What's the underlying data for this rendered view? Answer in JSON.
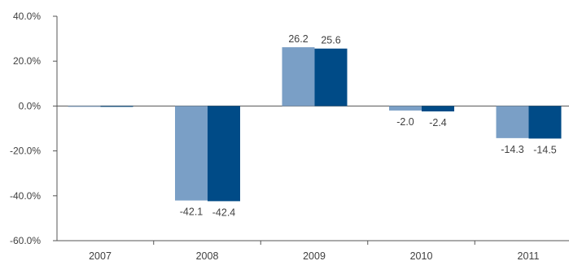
{
  "chart_data": {
    "type": "bar",
    "categories": [
      "2007",
      "2008",
      "2009",
      "2010",
      "2011"
    ],
    "series": [
      {
        "values": [
          0.0,
          -42.1,
          26.2,
          -2.0,
          -14.3
        ],
        "labels": [
          "",
          "-42.1",
          "26.2",
          "-2.0",
          "-14.3"
        ],
        "color": "#7a9fc6"
      },
      {
        "values": [
          0.0,
          -42.4,
          25.6,
          -2.4,
          -14.5
        ],
        "labels": [
          "",
          "-42.4",
          "25.6",
          "-2.4",
          "-14.5"
        ],
        "color": "#004b87"
      }
    ],
    "ylim": [
      -60,
      40
    ],
    "yticks": [
      40,
      20,
      0,
      -20,
      -40,
      -60
    ],
    "ytick_labels": [
      "40.0%",
      "20.0%",
      "0.0%",
      "-20.0%",
      "-40.0%",
      "-60.0%"
    ],
    "grid": false,
    "legend": "none",
    "axis_color": "#555555"
  }
}
